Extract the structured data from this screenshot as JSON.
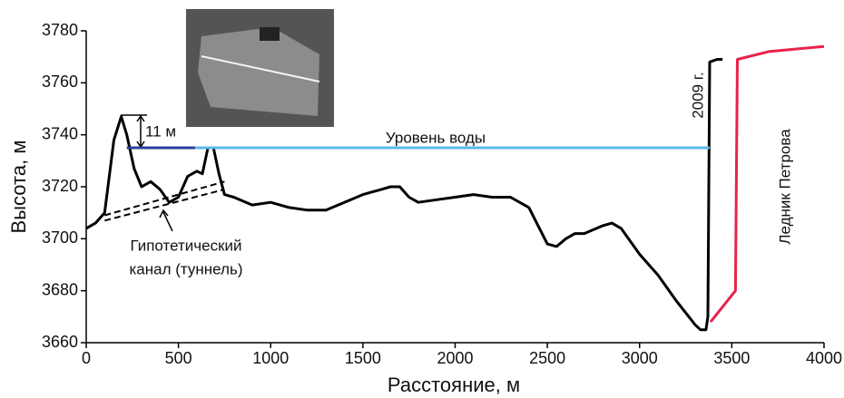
{
  "chart_data": {
    "type": "line",
    "y_label": "Высота, м",
    "x_label": "Расстояние, м",
    "xlim": [
      0,
      4000
    ],
    "xticks": [
      0,
      500,
      1000,
      1500,
      2000,
      2500,
      3000,
      3500,
      4000
    ],
    "ylim": [
      3660,
      3780
    ],
    "yticks": [
      3660,
      3680,
      3700,
      3720,
      3740,
      3760,
      3780
    ],
    "grid": false,
    "annotations": [
      "11 м",
      "Гипотетический",
      "канал (туннель)"
    ],
    "series": [
      {
        "name": "2009 г.",
        "color": "#000000",
        "dash": false,
        "x": [
          0,
          50,
          100,
          150,
          190,
          220,
          260,
          300,
          350,
          400,
          450,
          500,
          550,
          600,
          630,
          660,
          690,
          720,
          750,
          800,
          900,
          1000,
          1100,
          1200,
          1300,
          1400,
          1500,
          1600,
          1650,
          1700,
          1750,
          1800,
          1900,
          2000,
          2100,
          2200,
          2300,
          2400,
          2500,
          2550,
          2600,
          2650,
          2700,
          2800,
          2850,
          2900,
          3000,
          3100,
          3200,
          3300,
          3330,
          3360,
          3370,
          3380,
          3420,
          3450
        ],
        "values": [
          3704,
          3706,
          3710,
          3738,
          3747,
          3740,
          3727,
          3720,
          3722,
          3719,
          3714,
          3716,
          3724,
          3726,
          3725,
          3735,
          3735,
          3725,
          3717,
          3716,
          3713,
          3714,
          3712,
          3711,
          3711,
          3714,
          3717,
          3719,
          3720,
          3720,
          3716,
          3714,
          3715,
          3716,
          3717,
          3716,
          3716,
          3712,
          3698,
          3697,
          3700,
          3702,
          3702,
          3705,
          3706,
          3704,
          3694,
          3686,
          3676,
          3667,
          3665,
          3665,
          3670,
          3768,
          3769,
          3769
        ]
      },
      {
        "name": "Ледник Петрова",
        "color": "#e8234a",
        "dash": false,
        "x": [
          3385,
          3520,
          3530,
          3700,
          4000
        ],
        "values": [
          3668,
          3680,
          3769,
          3772,
          3774
        ]
      },
      {
        "name": "Уровень воды",
        "color": "#5bb8ea",
        "dash": false,
        "x": [
          590,
          3380
        ],
        "values": [
          3735,
          3735
        ]
      },
      {
        "color": "#2b3f9a",
        "dash": false,
        "x": [
          220,
          590
        ],
        "values": [
          3735,
          3735
        ]
      },
      {
        "color": "#000000",
        "dash": true,
        "x": [
          100,
          750
        ],
        "values": [
          3707,
          3719
        ]
      },
      {
        "color": "#000000",
        "dash": true,
        "x": [
          100,
          750
        ],
        "values": [
          3709,
          3722
        ]
      }
    ]
  }
}
